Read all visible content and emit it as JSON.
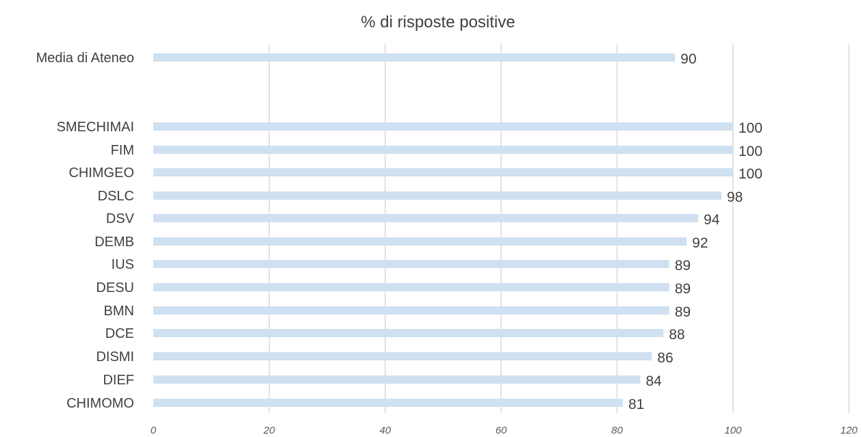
{
  "chart_data": {
    "type": "bar",
    "orientation": "horizontal",
    "title": "% di risposte positive",
    "xlabel": "",
    "ylabel": "",
    "xlim": [
      0,
      120
    ],
    "ticks": [
      0,
      20,
      40,
      60,
      80,
      100,
      120
    ],
    "grid": true,
    "legend": "none",
    "bar_color": "#cfe0f1",
    "categories": [
      "Media di Ateneo",
      "SMECHIMAI",
      "FIM",
      "CHIMGEO",
      "DSLC",
      "DSV",
      "DEMB",
      "IUS",
      "DESU",
      "BMN",
      "DCE",
      "DISMI",
      "DIEF",
      "CHIMOMO"
    ],
    "values": [
      90,
      100,
      100,
      100,
      98,
      94,
      92,
      89,
      89,
      89,
      88,
      86,
      84,
      81
    ],
    "value_labels": [
      "90",
      "100",
      "100",
      "100",
      "98",
      "94",
      "92",
      "89",
      "89",
      "89",
      "88",
      "86",
      "84",
      "81"
    ]
  }
}
